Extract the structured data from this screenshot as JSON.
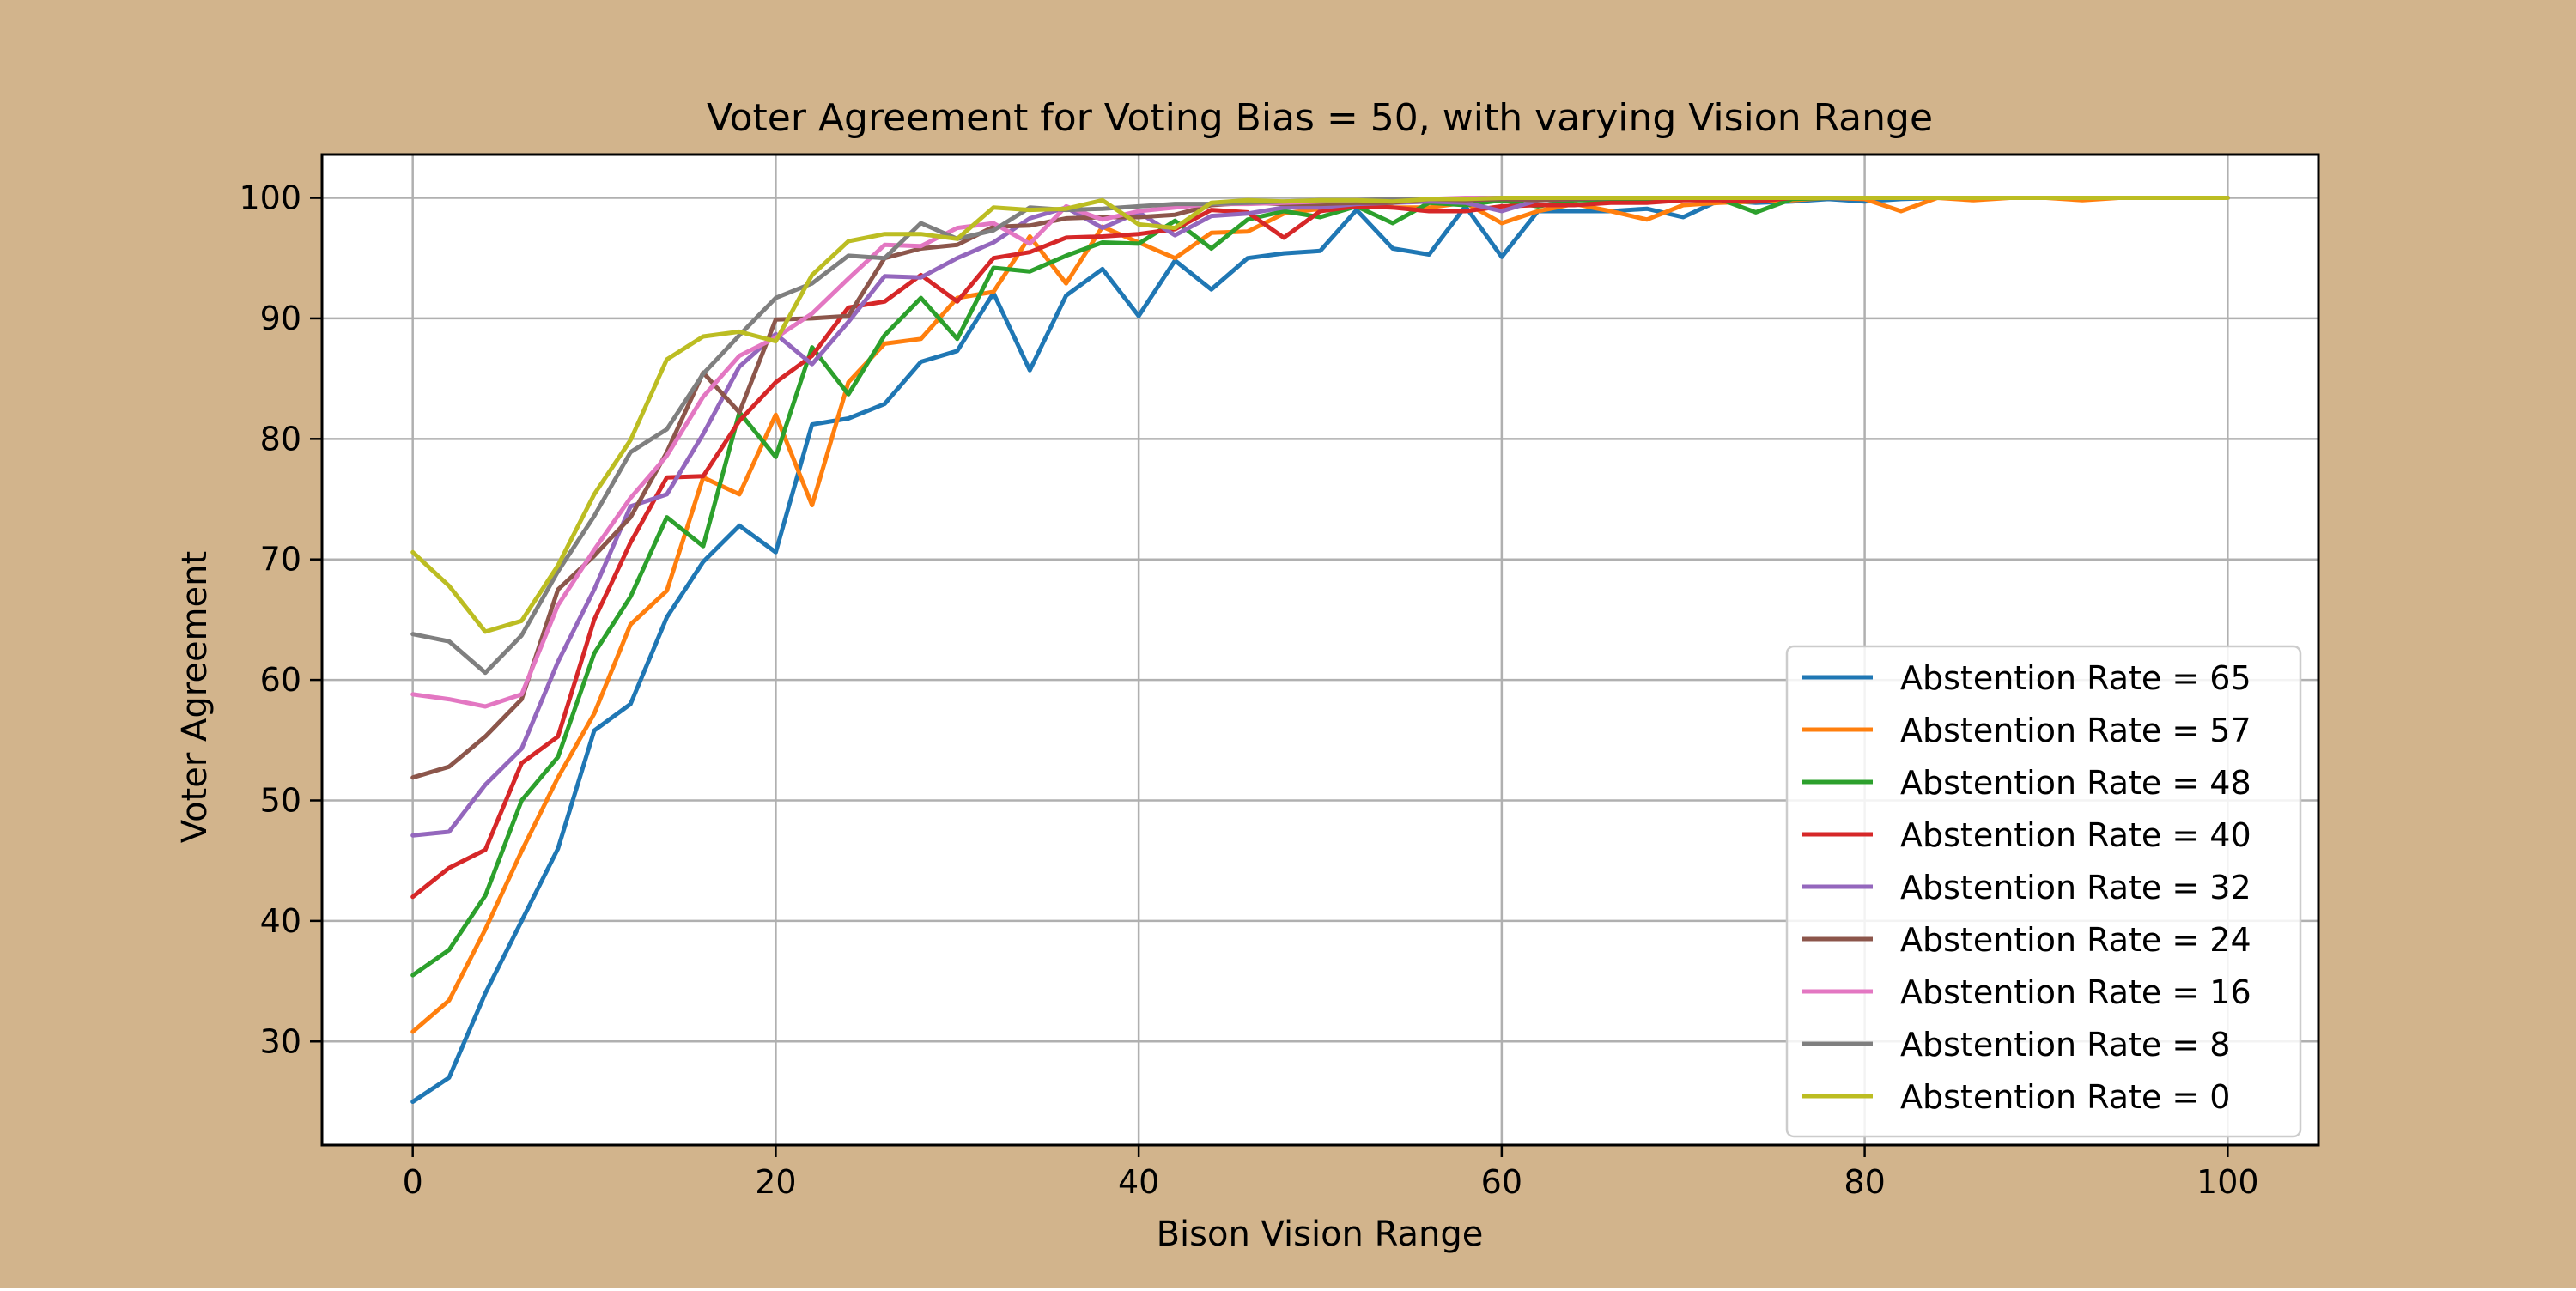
{
  "figure": {
    "background": "#d2b48c",
    "plot_background": "#ffffff"
  },
  "chart_data": {
    "type": "line",
    "title": "Voter Agreement for Voting Bias = 50, with varying Vision Range",
    "xlabel": "Bison Vision Range",
    "ylabel": "Voter Agreement",
    "xlim": [
      -5,
      105
    ],
    "ylim": [
      21.4,
      103.6
    ],
    "xticks": [
      0,
      20,
      40,
      60,
      80,
      100
    ],
    "yticks": [
      30,
      40,
      50,
      60,
      70,
      80,
      90,
      100
    ],
    "grid": true,
    "legend_position": "lower right",
    "x": [
      0,
      2,
      4,
      6,
      8,
      10,
      12,
      14,
      16,
      18,
      20,
      22,
      24,
      26,
      28,
      30,
      32,
      34,
      36,
      38,
      40,
      42,
      44,
      46,
      48,
      50,
      52,
      54,
      56,
      58,
      60,
      62,
      64,
      66,
      68,
      70,
      72,
      74,
      76,
      78,
      80,
      82,
      84,
      86,
      88,
      90,
      92,
      94,
      96,
      98,
      100
    ],
    "series": [
      {
        "name": "Abstention Rate = 65",
        "color": "#1f77b4",
        "values": [
          25.0,
          27.0,
          34.0,
          40.0,
          46.0,
          55.8,
          58.0,
          65.2,
          69.8,
          72.8,
          70.6,
          81.2,
          81.7,
          82.9,
          86.4,
          87.3,
          92.1,
          85.7,
          91.9,
          94.1,
          90.2,
          94.8,
          92.4,
          95.0,
          95.4,
          95.6,
          99.0,
          95.8,
          95.3,
          99.3,
          95.1,
          98.9,
          98.9,
          98.9,
          99.1,
          98.4,
          99.8,
          99.6,
          99.7,
          99.9,
          99.7,
          99.9,
          100.0,
          100.0,
          100.0,
          100.0,
          100.0,
          100.0,
          100.0,
          100.0,
          100.0
        ]
      },
      {
        "name": "Abstention Rate = 57",
        "color": "#ff7f0e",
        "values": [
          30.8,
          33.4,
          39.3,
          45.8,
          51.9,
          57.2,
          64.6,
          67.4,
          76.8,
          75.4,
          82.0,
          74.5,
          84.7,
          87.9,
          88.3,
          91.7,
          92.2,
          96.8,
          92.9,
          97.6,
          96.3,
          95.0,
          97.1,
          97.2,
          98.7,
          99.1,
          99.4,
          99.2,
          99.2,
          99.6,
          97.9,
          98.9,
          99.5,
          98.9,
          98.2,
          99.4,
          99.6,
          99.7,
          99.8,
          100.0,
          99.9,
          98.9,
          100.0,
          99.8,
          100.0,
          100.0,
          99.8,
          100.0,
          100.0,
          100.0,
          100.0
        ]
      },
      {
        "name": "Abstention Rate = 48",
        "color": "#2ca02c",
        "values": [
          35.5,
          37.6,
          42.1,
          50.0,
          53.6,
          62.2,
          66.9,
          73.5,
          71.1,
          82.2,
          78.5,
          87.6,
          83.7,
          88.6,
          91.7,
          88.3,
          94.2,
          93.9,
          95.2,
          96.3,
          96.2,
          98.1,
          95.8,
          98.2,
          98.9,
          98.4,
          99.3,
          97.9,
          99.6,
          99.4,
          99.8,
          99.3,
          99.8,
          99.8,
          99.9,
          99.9,
          99.9,
          98.8,
          99.9,
          100.0,
          100.0,
          100.0,
          100.0,
          100.0,
          100.0,
          100.0,
          100.0,
          100.0,
          100.0,
          100.0,
          100.0
        ]
      },
      {
        "name": "Abstention Rate = 40",
        "color": "#d62728",
        "values": [
          42.0,
          44.4,
          45.9,
          53.1,
          55.3,
          65.0,
          71.4,
          76.8,
          76.9,
          81.5,
          84.7,
          86.9,
          90.9,
          91.4,
          93.6,
          91.4,
          95.0,
          95.5,
          96.7,
          96.8,
          97.0,
          97.4,
          99.0,
          98.8,
          96.7,
          98.9,
          99.3,
          99.2,
          98.9,
          98.9,
          99.3,
          99.4,
          99.4,
          99.6,
          99.6,
          99.8,
          99.8,
          99.7,
          100.0,
          100.0,
          100.0,
          100.0,
          100.0,
          100.0,
          100.0,
          100.0,
          100.0,
          100.0,
          100.0,
          100.0,
          100.0
        ]
      },
      {
        "name": "Abstention Rate = 32",
        "color": "#9467bd",
        "values": [
          47.1,
          47.4,
          51.3,
          54.3,
          61.5,
          67.5,
          74.4,
          75.4,
          80.4,
          86.0,
          88.7,
          86.2,
          89.7,
          93.5,
          93.4,
          95.0,
          96.3,
          98.3,
          99.2,
          97.5,
          98.8,
          96.9,
          98.5,
          98.7,
          99.2,
          99.2,
          99.5,
          99.6,
          99.7,
          99.6,
          98.9,
          99.8,
          99.9,
          100.0,
          100.0,
          100.0,
          100.0,
          100.0,
          100.0,
          100.0,
          100.0,
          100.0,
          100.0,
          100.0,
          100.0,
          100.0,
          100.0,
          100.0,
          100.0,
          100.0,
          100.0
        ]
      },
      {
        "name": "Abstention Rate = 24",
        "color": "#8c564b",
        "values": [
          51.9,
          52.8,
          55.3,
          58.4,
          67.5,
          70.3,
          73.5,
          78.9,
          85.5,
          82.2,
          89.9,
          90.0,
          90.2,
          95.0,
          95.8,
          96.1,
          97.6,
          97.7,
          98.3,
          98.4,
          98.4,
          98.6,
          99.4,
          99.6,
          99.5,
          99.5,
          99.6,
          99.6,
          99.9,
          99.8,
          99.9,
          99.8,
          99.9,
          100.0,
          100.0,
          100.0,
          100.0,
          100.0,
          100.0,
          100.0,
          100.0,
          100.0,
          100.0,
          100.0,
          100.0,
          100.0,
          100.0,
          100.0,
          100.0,
          100.0,
          100.0
        ]
      },
      {
        "name": "Abstention Rate = 16",
        "color": "#e377c2",
        "values": [
          58.8,
          58.4,
          57.8,
          58.8,
          66.2,
          70.8,
          75.1,
          78.6,
          83.5,
          86.9,
          88.4,
          90.4,
          93.3,
          96.1,
          96.0,
          97.5,
          97.9,
          96.2,
          99.3,
          98.2,
          98.9,
          99.2,
          99.5,
          99.5,
          99.6,
          99.7,
          99.8,
          99.8,
          99.9,
          100.0,
          100.0,
          100.0,
          100.0,
          100.0,
          100.0,
          100.0,
          100.0,
          100.0,
          100.0,
          100.0,
          100.0,
          100.0,
          100.0,
          100.0,
          100.0,
          100.0,
          100.0,
          100.0,
          100.0,
          100.0,
          100.0
        ]
      },
      {
        "name": "Abstention Rate = 8",
        "color": "#7f7f7f",
        "values": [
          63.8,
          63.2,
          60.6,
          63.7,
          69.0,
          73.6,
          78.9,
          80.8,
          85.4,
          88.6,
          91.7,
          92.9,
          95.2,
          95.0,
          97.9,
          96.6,
          97.3,
          99.2,
          99.0,
          99.1,
          99.3,
          99.5,
          99.5,
          99.6,
          99.7,
          99.8,
          99.8,
          99.9,
          99.9,
          99.9,
          100.0,
          100.0,
          100.0,
          100.0,
          100.0,
          100.0,
          100.0,
          100.0,
          100.0,
          100.0,
          100.0,
          100.0,
          100.0,
          100.0,
          100.0,
          100.0,
          100.0,
          100.0,
          100.0,
          100.0,
          100.0
        ]
      },
      {
        "name": "Abstention Rate = 0",
        "color": "#bcbd22",
        "values": [
          70.6,
          67.8,
          64.0,
          64.9,
          69.5,
          75.4,
          79.9,
          86.6,
          88.5,
          88.9,
          88.1,
          93.6,
          96.4,
          97.0,
          97.0,
          96.6,
          99.2,
          99.0,
          99.1,
          99.8,
          97.8,
          97.5,
          99.6,
          99.8,
          99.7,
          99.8,
          99.8,
          99.7,
          99.9,
          99.9,
          100.0,
          100.0,
          100.0,
          100.0,
          100.0,
          100.0,
          100.0,
          100.0,
          100.0,
          100.0,
          100.0,
          100.0,
          100.0,
          100.0,
          100.0,
          100.0,
          100.0,
          100.0,
          100.0,
          100.0,
          100.0
        ]
      }
    ]
  }
}
